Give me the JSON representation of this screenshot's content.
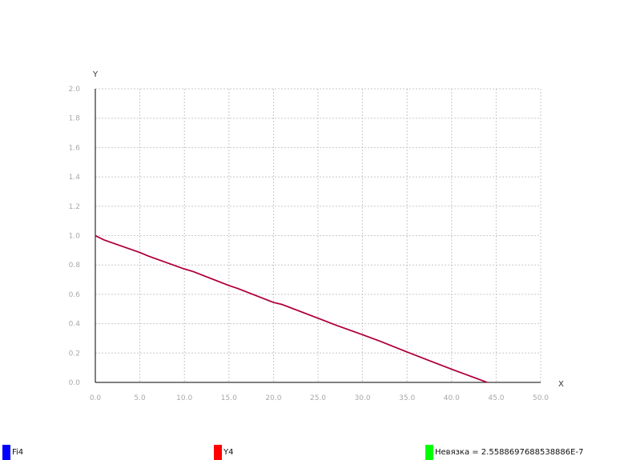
{
  "chart_data": {
    "type": "line",
    "title": "",
    "xlabel": "X",
    "ylabel": "Y",
    "xlim": [
      0,
      50
    ],
    "ylim": [
      0,
      2
    ],
    "x_ticks": [
      "0.0",
      "5.0",
      "10.0",
      "15.0",
      "20.0",
      "25.0",
      "30.0",
      "35.0",
      "40.0",
      "45.0",
      "50.0"
    ],
    "y_ticks": [
      "0.0",
      "0.2",
      "0.4",
      "0.6",
      "0.8",
      "1.0",
      "1.2",
      "1.4",
      "1.6",
      "1.8",
      "2.0"
    ],
    "grid": true,
    "series": [
      {
        "name": "Fi4",
        "color": "#0000ff",
        "x": [
          0,
          1,
          5,
          6,
          10,
          11,
          15,
          16,
          20,
          21,
          25,
          27,
          30,
          32,
          35,
          37,
          40,
          42,
          44
        ],
        "y": [
          1.0,
          0.97,
          0.885,
          0.86,
          0.773,
          0.755,
          0.66,
          0.64,
          0.545,
          0.53,
          0.437,
          0.39,
          0.325,
          0.28,
          0.207,
          0.16,
          0.09,
          0.045,
          0.0
        ]
      },
      {
        "name": "Y4",
        "color": "#ff0000",
        "x": [
          0,
          1,
          5,
          6,
          10,
          11,
          15,
          16,
          20,
          21,
          25,
          27,
          30,
          32,
          35,
          37,
          40,
          42,
          44
        ],
        "y": [
          1.0,
          0.97,
          0.885,
          0.86,
          0.773,
          0.755,
          0.66,
          0.64,
          0.545,
          0.53,
          0.437,
          0.39,
          0.325,
          0.28,
          0.207,
          0.16,
          0.09,
          0.045,
          0.0
        ]
      }
    ],
    "line_color": "#b0003a"
  },
  "legend": {
    "items": [
      {
        "label": "Fi4",
        "color": "#0000ff"
      },
      {
        "label": "Y4",
        "color": "#ff0000"
      },
      {
        "label": "Невязка = 2.5588697688538886E-7",
        "color": "#00ff00"
      }
    ]
  }
}
